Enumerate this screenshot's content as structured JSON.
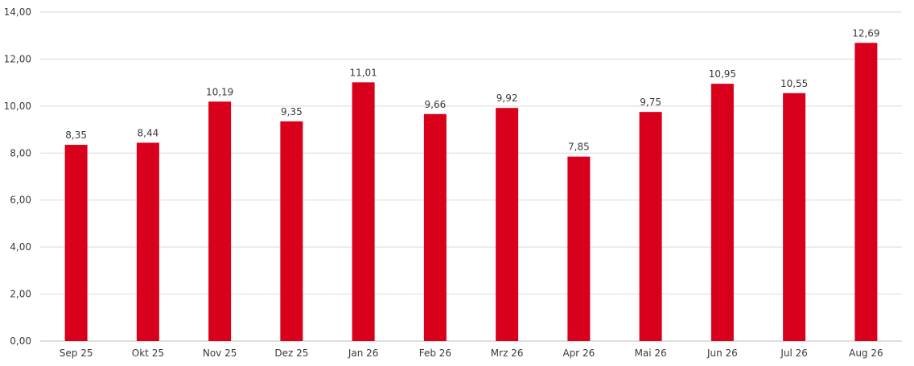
{
  "chart_data": {
    "type": "bar",
    "title": "",
    "xlabel": "",
    "ylabel": "",
    "categories": [
      "Sep 25",
      "Okt 25",
      "Nov 25",
      "Dez 25",
      "Jan 26",
      "Feb 26",
      "Mrz 26",
      "Apr 26",
      "Mai 26",
      "Jun 26",
      "Jul 26",
      "Aug 26"
    ],
    "values": [
      8.35,
      8.44,
      10.19,
      9.35,
      11.01,
      9.66,
      9.92,
      7.85,
      9.75,
      10.95,
      10.55,
      12.69
    ],
    "value_labels": [
      "8,35",
      "8,44",
      "10,19",
      "9,35",
      "11,01",
      "9,66",
      "9,92",
      "7,85",
      "9,75",
      "10,95",
      "10,55",
      "12,69"
    ],
    "ylim": [
      0,
      14
    ],
    "yticks": [
      0,
      2,
      4,
      6,
      8,
      10,
      12,
      14
    ],
    "ytick_labels": [
      "0,00",
      "2,00",
      "4,00",
      "6,00",
      "8,00",
      "10,00",
      "12,00",
      "14,00"
    ],
    "grid": true,
    "legend": "none",
    "bar_color": "#d9001b"
  }
}
